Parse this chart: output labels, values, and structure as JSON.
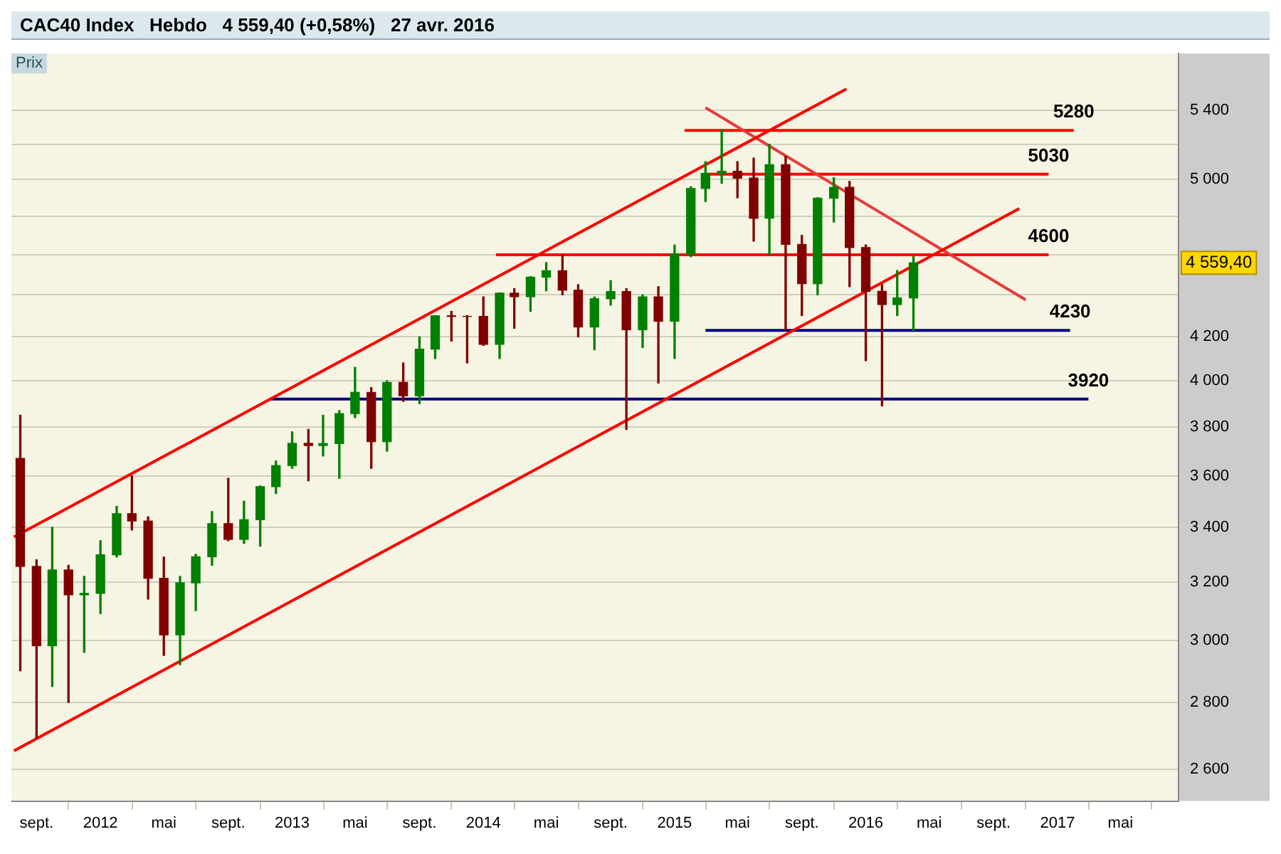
{
  "chart_data": {
    "type": "candlestick",
    "title": "CAC40 Index   Hebdo   4 559,40 (+0,58%)   27 avr. 2016",
    "x": [
      "2011-08",
      "2011-09",
      "2011-10",
      "2011-11",
      "2011-12",
      "2012-01",
      "2012-02",
      "2012-03",
      "2012-04",
      "2012-05",
      "2012-06",
      "2012-07",
      "2012-08",
      "2012-09",
      "2012-10",
      "2012-11",
      "2012-12",
      "2013-01",
      "2013-02",
      "2013-03",
      "2013-04",
      "2013-05",
      "2013-06",
      "2013-07",
      "2013-08",
      "2013-09",
      "2013-10",
      "2013-11",
      "2013-12",
      "2014-01",
      "2014-02",
      "2014-03",
      "2014-04",
      "2014-05",
      "2014-06",
      "2014-07",
      "2014-08",
      "2014-09",
      "2014-10",
      "2014-11",
      "2014-12",
      "2015-01",
      "2015-02",
      "2015-03",
      "2015-04",
      "2015-05",
      "2015-06",
      "2015-07",
      "2015-08",
      "2015-09",
      "2015-10",
      "2015-11",
      "2015-12",
      "2016-01",
      "2016-02",
      "2016-03",
      "2016-04"
    ],
    "ohlc": [
      [
        3670,
        3850,
        2900,
        3256
      ],
      [
        3256,
        3280,
        2690,
        2982
      ],
      [
        2982,
        3400,
        2850,
        3243
      ],
      [
        3243,
        3260,
        2800,
        3155
      ],
      [
        3155,
        3220,
        2960,
        3160
      ],
      [
        3160,
        3350,
        3090,
        3298
      ],
      [
        3298,
        3480,
        3290,
        3452
      ],
      [
        3452,
        3600,
        3390,
        3424
      ],
      [
        3424,
        3440,
        3140,
        3213
      ],
      [
        3213,
        3290,
        2950,
        3018
      ],
      [
        3018,
        3220,
        2920,
        3197
      ],
      [
        3197,
        3300,
        3100,
        3291
      ],
      [
        3291,
        3460,
        3260,
        3414
      ],
      [
        3414,
        3590,
        3350,
        3355
      ],
      [
        3355,
        3500,
        3340,
        3429
      ],
      [
        3429,
        3560,
        3330,
        3557
      ],
      [
        3557,
        3660,
        3530,
        3641
      ],
      [
        3641,
        3780,
        3630,
        3732
      ],
      [
        3732,
        3790,
        3580,
        3723
      ],
      [
        3723,
        3850,
        3680,
        3731
      ],
      [
        3731,
        3870,
        3590,
        3857
      ],
      [
        3857,
        4060,
        3840,
        3949
      ],
      [
        3949,
        3970,
        3630,
        3739
      ],
      [
        3739,
        4000,
        3700,
        3993
      ],
      [
        3993,
        4080,
        3910,
        3934
      ],
      [
        3934,
        4200,
        3900,
        4143
      ],
      [
        4143,
        4300,
        4100,
        4299
      ],
      [
        4299,
        4320,
        4180,
        4296
      ],
      [
        4296,
        4300,
        4080,
        4296
      ],
      [
        4296,
        4390,
        4160,
        4165
      ],
      [
        4165,
        4410,
        4100,
        4408
      ],
      [
        4408,
        4430,
        4240,
        4391
      ],
      [
        4391,
        4490,
        4320,
        4487
      ],
      [
        4487,
        4560,
        4420,
        4519
      ],
      [
        4519,
        4600,
        4400,
        4423
      ],
      [
        4423,
        4450,
        4200,
        4246
      ],
      [
        4246,
        4390,
        4140,
        4381
      ],
      [
        4381,
        4470,
        4350,
        4416
      ],
      [
        4416,
        4430,
        3790,
        4233
      ],
      [
        4233,
        4400,
        4150,
        4390
      ],
      [
        4390,
        4440,
        3990,
        4273
      ],
      [
        4273,
        4650,
        4100,
        4604
      ],
      [
        4604,
        4960,
        4590,
        4951
      ],
      [
        4951,
        5100,
        4880,
        5034
      ],
      [
        5034,
        5280,
        4980,
        5046
      ],
      [
        5046,
        5100,
        4900,
        5008
      ],
      [
        5008,
        5120,
        4670,
        4790
      ],
      [
        4790,
        5200,
        4600,
        5083
      ],
      [
        5083,
        5130,
        4230,
        4653
      ],
      [
        4653,
        4700,
        4300,
        4455
      ],
      [
        4455,
        4900,
        4400,
        4898
      ],
      [
        4898,
        5010,
        4770,
        4957
      ],
      [
        4957,
        4990,
        4440,
        4637
      ],
      [
        4637,
        4650,
        4090,
        4417
      ],
      [
        4417,
        4450,
        3890,
        4353
      ],
      [
        4353,
        4520,
        4300,
        4385
      ],
      [
        4385,
        4590,
        4230,
        4559
      ]
    ],
    "colors": [
      "#800000",
      "#800000",
      "#008000",
      "#800000",
      "#008000",
      "#008000",
      "#008000",
      "#800000",
      "#800000",
      "#800000",
      "#008000",
      "#008000",
      "#008000",
      "#800000",
      "#008000",
      "#008000",
      "#008000",
      "#008000",
      "#800000",
      "#008000",
      "#008000",
      "#008000",
      "#800000",
      "#008000",
      "#800000",
      "#008000",
      "#008000",
      "#800000",
      "#800000",
      "#800000",
      "#008000",
      "#800000",
      "#008000",
      "#008000",
      "#800000",
      "#800000",
      "#008000",
      "#008000",
      "#800000",
      "#008000",
      "#800000",
      "#008000",
      "#008000",
      "#008000",
      "#008000",
      "#800000",
      "#800000",
      "#008000",
      "#800000",
      "#800000",
      "#008000",
      "#008000",
      "#800000",
      "#800000",
      "#800000",
      "#008000",
      "#008000"
    ],
    "series": [
      {
        "type": "line",
        "color": "#ff0000",
        "x": [
          "2011-07-20",
          "2015-11-25"
        ],
        "values": [
          3364,
          5528
        ]
      },
      {
        "type": "line",
        "color": "#ff0000",
        "x": [
          "2011-07-20",
          "2016-10-20"
        ],
        "values": [
          2654,
          4842
        ]
      },
      {
        "type": "line",
        "color": "#e83a3a",
        "x": [
          "2015-03-01",
          "2016-11-01"
        ],
        "values": [
          5415,
          4376
        ]
      },
      {
        "type": "line",
        "name": "5280",
        "color": "#ff0000",
        "x": [
          "2015-01-20",
          "2017-02-01"
        ],
        "values": [
          5280,
          5280
        ]
      },
      {
        "type": "line",
        "name": "5030",
        "color": "#ff0000",
        "x": [
          "2015-03-01",
          "2016-12-15"
        ],
        "values": [
          5030,
          5030
        ]
      },
      {
        "type": "line",
        "name": "4600",
        "color": "#ff0000",
        "x": [
          "2014-01-25",
          "2016-12-15"
        ],
        "values": [
          4600,
          4600
        ]
      },
      {
        "type": "line",
        "name": "4230",
        "color": "#000080",
        "x": [
          "2015-03-01",
          "2017-01-25"
        ],
        "values": [
          4230,
          4230
        ]
      },
      {
        "type": "line",
        "name": "3920",
        "color": "#000080",
        "x": [
          "2012-11-20",
          "2017-03-01"
        ],
        "values": [
          3920,
          3920
        ]
      }
    ],
    "annotations": [
      "Prix",
      "4 559,40"
    ],
    "xlim": [
      "2011-07-15",
      "2017-08-20"
    ],
    "xticks": [
      {
        "value": "2011-09-01",
        "label": "sept."
      },
      {
        "value": "2012-01-01",
        "label": "2012"
      },
      {
        "value": "2012-05-01",
        "label": "mai"
      },
      {
        "value": "2012-09-01",
        "label": "sept."
      },
      {
        "value": "2013-01-01",
        "label": "2013"
      },
      {
        "value": "2013-05-01",
        "label": "mai"
      },
      {
        "value": "2013-09-01",
        "label": "sept."
      },
      {
        "value": "2014-01-01",
        "label": "2014"
      },
      {
        "value": "2014-05-01",
        "label": "mai"
      },
      {
        "value": "2014-09-01",
        "label": "sept."
      },
      {
        "value": "2015-01-01",
        "label": "2015"
      },
      {
        "value": "2015-05-01",
        "label": "mai"
      },
      {
        "value": "2015-09-01",
        "label": "sept."
      },
      {
        "value": "2016-01-01",
        "label": "2016"
      },
      {
        "value": "2016-05-01",
        "label": "mai"
      },
      {
        "value": "2016-09-01",
        "label": "sept."
      },
      {
        "value": "2017-01-01",
        "label": "2017"
      },
      {
        "value": "2017-05-01",
        "label": "mai"
      }
    ],
    "ylim": [
      2510,
      5750
    ],
    "yticks": [
      {
        "value": 2600,
        "label": "2 600"
      },
      {
        "value": 2800,
        "label": "2 800"
      },
      {
        "value": 3000,
        "label": "3 000"
      },
      {
        "value": 3200,
        "label": "3 200"
      },
      {
        "value": 3400,
        "label": "3 400"
      },
      {
        "value": 3600,
        "label": "3 600"
      },
      {
        "value": 3800,
        "label": "3 800"
      },
      {
        "value": 4000,
        "label": "4 000"
      },
      {
        "value": 4200,
        "label": "4 200"
      },
      {
        "value": 4400,
        "label": null
      },
      {
        "value": 4600,
        "label": null
      },
      {
        "value": 4800,
        "label": null
      },
      {
        "value": 5000,
        "label": "5 000"
      },
      {
        "value": 5200,
        "label": null
      },
      {
        "value": 5400,
        "label": "5 400"
      }
    ],
    "log": true,
    "grid": "y",
    "marker": "none"
  }
}
